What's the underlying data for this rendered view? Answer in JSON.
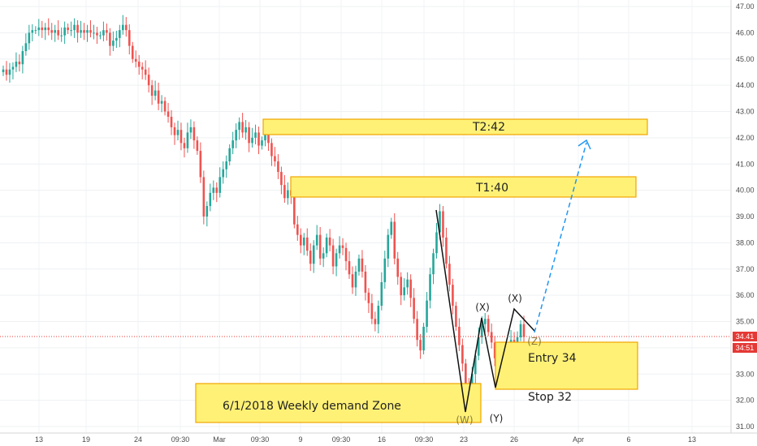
{
  "chart_data": {
    "type": "candlestick",
    "ylim": [
      31,
      47
    ],
    "y_ticks": [
      "31.00",
      "32.00",
      "33.00",
      "34.00",
      "35.00",
      "36.00",
      "37.00",
      "38.00",
      "39.00",
      "40.00",
      "41.00",
      "42.00",
      "43.00",
      "44.00",
      "45.00",
      "46.00",
      "47.00"
    ],
    "x_tick_labels": [
      "13",
      "19",
      "24",
      "09:30",
      "Mar",
      "09:30",
      "9",
      "09:30",
      "16",
      "09:30",
      "23",
      "26",
      "Apr",
      "6",
      "13"
    ],
    "last_price": "34.41",
    "countdown": "34:51",
    "candles": [
      44.6,
      44.4,
      44.6,
      44.7,
      44.9,
      44.8,
      45.3,
      45.6,
      46.0,
      46.1,
      46.1,
      46.2,
      46.1,
      46.2,
      46.1,
      46.0,
      46.1,
      45.9,
      45.9,
      46.2,
      46.1,
      46.1,
      46.3,
      46.0,
      46.1,
      46.0,
      46.1,
      46.0,
      46.0,
      45.9,
      45.9,
      46.1,
      46.0,
      45.5,
      45.7,
      45.8,
      46.1,
      46.3,
      46.1,
      45.5,
      45.0,
      44.9,
      44.7,
      44.6,
      44.4,
      44.0,
      43.6,
      43.8,
      43.3,
      43.4,
      43.0,
      42.8,
      42.4,
      42.1,
      42.3,
      41.8,
      41.6,
      42.2,
      42.4,
      41.9,
      41.5,
      40.5,
      39.0,
      39.4,
      39.9,
      40.1,
      39.9,
      40.5,
      40.8,
      41.1,
      41.6,
      41.9,
      42.3,
      42.6,
      42.2,
      42.4,
      41.8,
      42.0,
      42.2,
      41.7,
      41.9,
      42.2,
      41.8,
      41.3,
      41.1,
      40.7,
      40.2,
      39.7,
      40.0,
      39.8,
      38.7,
      38.3,
      37.9,
      38.2,
      37.7,
      37.2,
      37.9,
      38.3,
      37.4,
      37.6,
      38.2,
      37.9,
      37.1,
      37.6,
      37.9,
      37.8,
      37.3,
      36.8,
      36.3,
      36.9,
      37.4,
      36.9,
      36.1,
      35.7,
      35.1,
      34.9,
      35.6,
      36.5,
      37.4,
      38.3,
      38.8,
      37.4,
      36.7,
      36.0,
      36.3,
      36.6,
      35.9,
      35.1,
      34.3,
      33.9,
      34.8,
      35.8,
      36.8,
      37.6,
      38.4,
      39.2,
      38.2,
      37.2,
      36.4,
      35.6,
      34.8,
      34.1,
      33.4,
      32.5,
      32.3,
      33.0,
      33.7,
      34.4,
      34.9,
      35.1,
      34.6,
      34.2,
      33.6,
      33.0,
      32.7,
      33.2,
      33.8,
      34.3,
      34.0,
      34.4,
      34.9,
      34.41
    ]
  },
  "zones": {
    "t2": "T2:42",
    "t1": "T1:40",
    "entry": "Entry 34",
    "stop": "Stop 32",
    "demand": "6/1/2018 Weekly demand Zone"
  },
  "waves": [
    "(X)",
    "(X)",
    "(Z)",
    "(W)",
    "(Y)"
  ],
  "colors": {
    "up": "#26a69a",
    "down": "#ef5350",
    "zone_fill": "#fff176",
    "zone_border": "#f0a500",
    "projection": "#2196f3",
    "last_price": "#e53935"
  }
}
